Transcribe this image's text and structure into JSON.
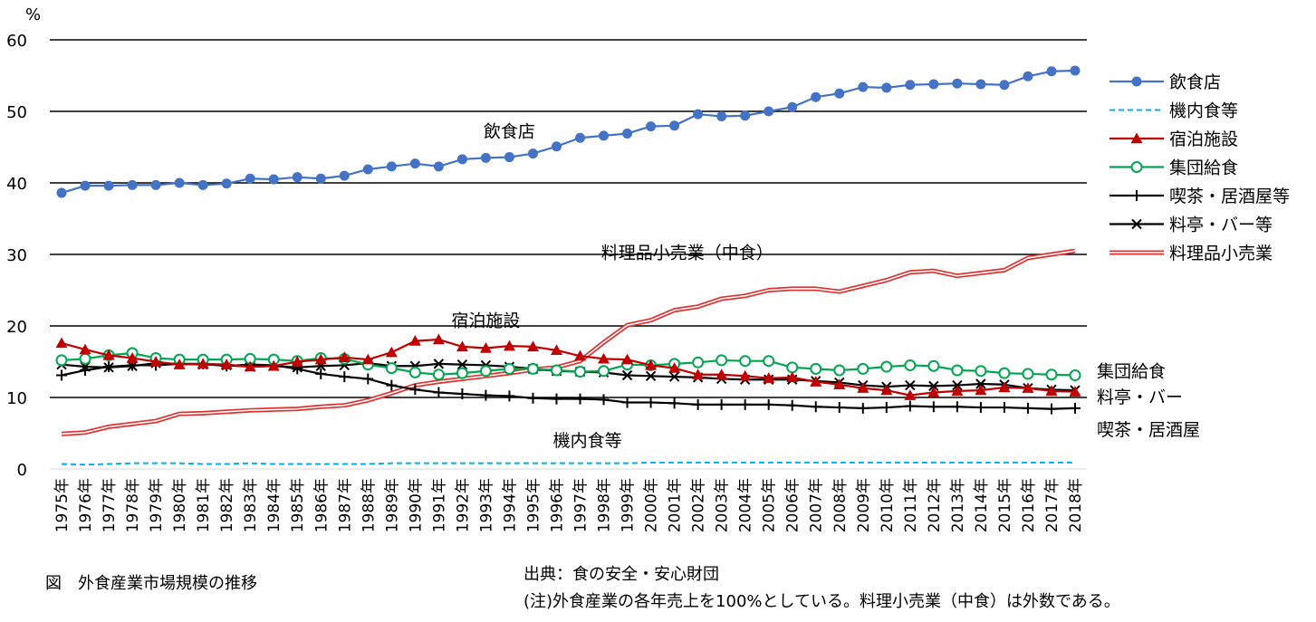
{
  "chart_data": {
    "type": "line",
    "ylabel": "%",
    "ylim": [
      0,
      60
    ],
    "yticks": [
      0,
      10,
      20,
      30,
      40,
      50,
      60
    ],
    "grid": true,
    "legend_position": "right",
    "categories": [
      "1975年",
      "1976年",
      "1977年",
      "1978年",
      "1979年",
      "1980年",
      "1981年",
      "1982年",
      "1983年",
      "1984年",
      "1985年",
      "1986年",
      "1987年",
      "1988年",
      "1989年",
      "1990年",
      "1991年",
      "1992年",
      "1993年",
      "1994年",
      "1995年",
      "1996年",
      "1997年",
      "1998年",
      "1999年",
      "2000年",
      "2001年",
      "2002年",
      "2003年",
      "2004年",
      "2005年",
      "2006年",
      "2007年",
      "2008年",
      "2009年",
      "2010年",
      "2011年",
      "2012年",
      "2013年",
      "2014年",
      "2015年",
      "2016年",
      "2017年",
      "2018年"
    ],
    "series": [
      {
        "name": "飲食店",
        "color": "#4472c4",
        "style": "circle-filled",
        "values": [
          38.6,
          39.6,
          39.6,
          39.7,
          39.7,
          40.0,
          39.7,
          39.9,
          40.6,
          40.5,
          40.8,
          40.6,
          41.0,
          41.9,
          42.3,
          42.7,
          42.3,
          43.3,
          43.5,
          43.6,
          44.1,
          45.1,
          46.3,
          46.6,
          46.9,
          47.9,
          48.0,
          49.6,
          49.3,
          49.4,
          50.0,
          50.6,
          52.0,
          52.5,
          53.4,
          53.3,
          53.7,
          53.8,
          53.9,
          53.8,
          53.7,
          54.9,
          55.6,
          55.7
        ]
      },
      {
        "name": "機内食等",
        "color": "#00b0f0",
        "style": "dashed",
        "values": [
          0.7,
          0.6,
          0.7,
          0.8,
          0.8,
          0.8,
          0.7,
          0.7,
          0.8,
          0.7,
          0.7,
          0.7,
          0.7,
          0.7,
          0.8,
          0.8,
          0.8,
          0.8,
          0.8,
          0.8,
          0.8,
          0.8,
          0.8,
          0.8,
          0.8,
          0.9,
          0.9,
          0.9,
          0.9,
          0.9,
          0.9,
          0.9,
          0.9,
          0.9,
          0.9,
          0.9,
          0.9,
          0.9,
          0.9,
          0.9,
          0.9,
          0.9,
          0.9,
          0.9
        ]
      },
      {
        "name": "宿泊施設",
        "color": "#c00000",
        "style": "triangle",
        "values": [
          17.6,
          16.7,
          15.9,
          15.5,
          15.0,
          14.6,
          14.7,
          14.6,
          14.3,
          14.4,
          15.0,
          15.3,
          15.6,
          15.3,
          16.3,
          17.9,
          18.1,
          17.1,
          16.9,
          17.2,
          17.1,
          16.6,
          15.8,
          15.4,
          15.3,
          14.5,
          14.1,
          13.2,
          13.2,
          13.0,
          12.7,
          12.8,
          12.2,
          11.8,
          11.3,
          11.0,
          10.3,
          10.7,
          10.9,
          11.0,
          11.4,
          11.3,
          10.9,
          10.8
        ]
      },
      {
        "name": "集団給食",
        "color": "#00a650",
        "style": "circle-open",
        "values": [
          15.2,
          15.4,
          15.9,
          16.2,
          15.5,
          15.3,
          15.3,
          15.3,
          15.4,
          15.3,
          15.1,
          15.5,
          15.4,
          14.6,
          14.1,
          13.5,
          13.2,
          13.4,
          13.7,
          14.0,
          14.0,
          13.8,
          13.6,
          13.7,
          14.6,
          14.5,
          14.7,
          14.9,
          15.2,
          15.1,
          15.1,
          14.2,
          14.0,
          13.8,
          14.0,
          14.3,
          14.5,
          14.4,
          13.8,
          13.7,
          13.4,
          13.3,
          13.2,
          13.1
        ]
      },
      {
        "name": "喫茶・居酒屋等",
        "color": "#000000",
        "style": "plus",
        "values": [
          13.1,
          13.8,
          14.3,
          14.5,
          14.5,
          14.7,
          14.7,
          14.4,
          14.6,
          14.5,
          14.0,
          13.3,
          12.9,
          12.6,
          11.7,
          11.1,
          10.7,
          10.5,
          10.3,
          10.2,
          9.9,
          9.8,
          9.8,
          9.7,
          9.3,
          9.3,
          9.2,
          9.0,
          9.0,
          9.0,
          9.0,
          8.9,
          8.7,
          8.6,
          8.5,
          8.6,
          8.8,
          8.7,
          8.7,
          8.6,
          8.6,
          8.5,
          8.4,
          8.5
        ]
      },
      {
        "name": "料亭・バー等",
        "color": "#000000",
        "style": "cross",
        "values": [
          14.6,
          14.3,
          14.2,
          14.4,
          14.8,
          14.7,
          14.6,
          14.5,
          14.3,
          14.4,
          14.2,
          14.4,
          14.5,
          14.8,
          14.4,
          14.4,
          14.7,
          14.6,
          14.5,
          14.3,
          14.0,
          13.7,
          13.6,
          13.5,
          13.1,
          13.0,
          12.9,
          12.8,
          12.6,
          12.5,
          12.5,
          12.5,
          12.3,
          12.1,
          11.7,
          11.5,
          11.7,
          11.6,
          11.7,
          11.9,
          11.8,
          11.3,
          11.1,
          11.0
        ]
      },
      {
        "name": "料理品小売業",
        "color": "#e03030",
        "style": "double",
        "values": [
          4.9,
          5.1,
          5.9,
          6.3,
          6.7,
          7.7,
          7.8,
          8.0,
          8.2,
          8.3,
          8.4,
          8.7,
          8.9,
          9.6,
          10.6,
          11.7,
          12.2,
          12.6,
          13.0,
          13.4,
          13.9,
          14.2,
          15.1,
          17.7,
          20.1,
          20.8,
          22.2,
          22.7,
          23.8,
          24.2,
          25.0,
          25.2,
          25.2,
          24.8,
          25.6,
          26.4,
          27.5,
          27.7,
          27.0,
          27.4,
          27.8,
          29.5,
          30.0,
          30.5
        ]
      }
    ],
    "annotations": [
      {
        "text": "飲食店",
        "series": 0
      },
      {
        "text": "料理品小売業（中食）",
        "series": 6
      },
      {
        "text": "宿泊施設",
        "series": 2
      },
      {
        "text": "機内食等",
        "series": 1
      }
    ],
    "end_labels": [
      "集団給食",
      "料亭・バー",
      "喫茶・居酒屋"
    ]
  },
  "figure_title": "図　外食産業市場規模の推移",
  "source_note": "出典：食の安全・安心財団",
  "footnote": "(注)外食産業の各年売上を100%としている。料理小売業（中食）は外数である。"
}
